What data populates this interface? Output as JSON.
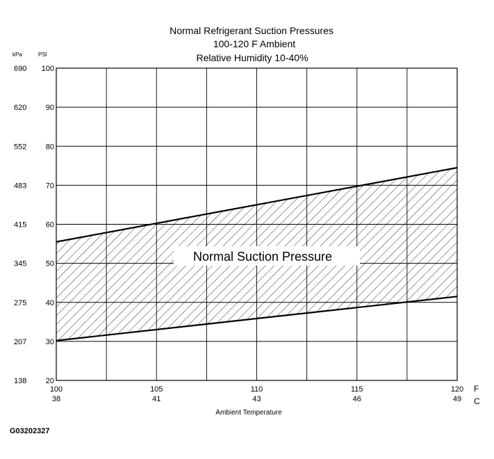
{
  "chart_data": {
    "type": "area",
    "title": [
      "Normal  Refrigerant  Suction  Pressures",
      "100-120 F Ambient",
      "Relative Humidity 10-40%"
    ],
    "xlabel": "Ambient Temperature",
    "x_unit_primary": "F",
    "x_unit_secondary": "C",
    "x_ticks_f": [
      "100",
      "105",
      "110",
      "115",
      "120"
    ],
    "x_ticks_c": [
      "38",
      "41",
      "43",
      "46",
      "49"
    ],
    "xlim": [
      100,
      120
    ],
    "x_grid": [
      100,
      102.5,
      105,
      107.5,
      110,
      112.5,
      115,
      117.5,
      120
    ],
    "y_unit_primary": "PSI",
    "y_unit_secondary": "kPa",
    "y_ticks_psi": [
      "20",
      "30",
      "40",
      "50",
      "60",
      "70",
      "80",
      "90",
      "100"
    ],
    "y_ticks_kpa": [
      "138",
      "207",
      "275",
      "345",
      "415",
      "483",
      "552",
      "620",
      "690"
    ],
    "ylim": [
      20,
      100
    ],
    "grid": true,
    "band_label": "Normal Suction Pressure",
    "series": [
      {
        "role": "upper",
        "x": [
          100,
          120
        ],
        "values": [
          55.5,
          74.5
        ]
      },
      {
        "role": "lower",
        "x": [
          100,
          120
        ],
        "values": [
          30.2,
          41.5
        ]
      }
    ]
  },
  "figure_id": "G03202327"
}
